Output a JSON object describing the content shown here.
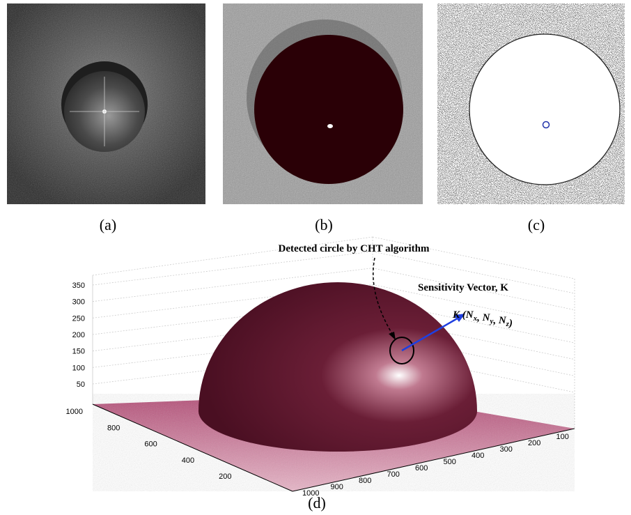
{
  "panels": [
    {
      "label": "(a)"
    },
    {
      "label": "(b)"
    },
    {
      "label": "(c)"
    }
  ],
  "plot": {
    "label": "(d)",
    "z_ticks": [
      350,
      300,
      250,
      200,
      150,
      100,
      50
    ],
    "y_ticks": [
      1000,
      800,
      600,
      400,
      200
    ],
    "x_ticks": [
      1000,
      900,
      800,
      700,
      600,
      500,
      400,
      300,
      200,
      100
    ],
    "annotation": "Detected circle by CHT algorithm",
    "vector_title": "Sensitivity Vector, K",
    "vector_formula": {
      "open": "K (",
      "terms": [
        {
          "base": "N",
          "sub": "x"
        },
        {
          "base": "N",
          "sub": "y"
        },
        {
          "base": "N",
          "sub": "z"
        }
      ],
      "separator": ", ",
      "close": ")"
    }
  }
}
